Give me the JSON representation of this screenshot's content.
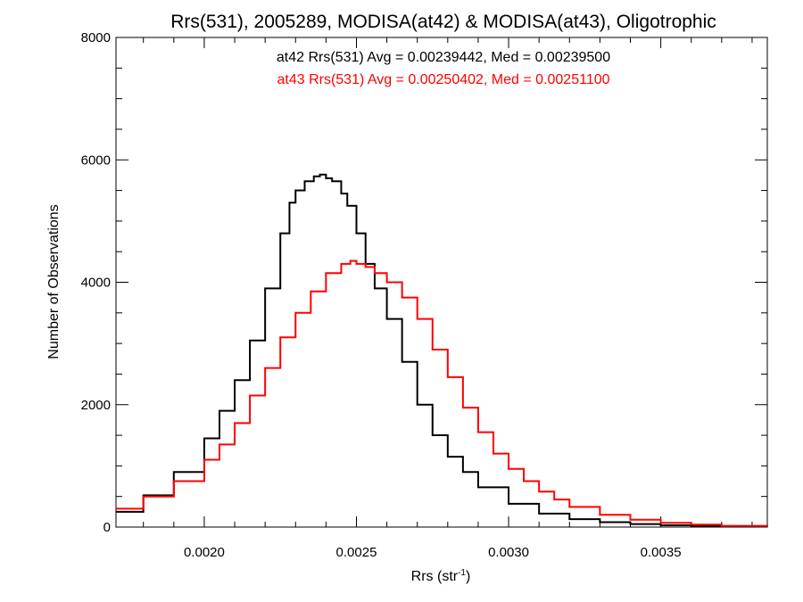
{
  "chart_data": {
    "type": "line",
    "title": "Rrs(531), 2005289, MODISA(at42) & MODISA(at43), Oligotrophic",
    "xlabel": "Rrs (str",
    "xlabel_sup": "-1",
    "xlabel_suffix": ")",
    "ylabel": "Number of Observations",
    "xlim": [
      0.00171,
      0.00385
    ],
    "ylim": [
      0,
      8000
    ],
    "x_ticks": [
      0.002,
      0.0025,
      0.003,
      0.0035
    ],
    "x_tick_labels": [
      "0.0020",
      "0.0025",
      "0.0030",
      "0.0035"
    ],
    "y_ticks": [
      0,
      2000,
      4000,
      6000,
      8000
    ],
    "y_tick_labels": [
      "0",
      "2000",
      "4000",
      "6000",
      "8000"
    ],
    "grid": false,
    "legend_placement": "top-center",
    "annotations": [
      {
        "text": "at42 Rrs(531) Avg = 0.00239442, Med = 0.00239500",
        "color": "#000000"
      },
      {
        "text": "at43 Rrs(531) Avg = 0.00250402, Med = 0.00251100",
        "color": "#ff0000"
      }
    ],
    "series": [
      {
        "color": "#000000",
        "style": "step",
        "x": [
          0.00171,
          0.0018,
          0.0019,
          0.002,
          0.00205,
          0.0021,
          0.00215,
          0.0022,
          0.00225,
          0.00228,
          0.0023,
          0.00233,
          0.00236,
          0.00238,
          0.0024,
          0.00242,
          0.00245,
          0.00247,
          0.0025,
          0.00253,
          0.00256,
          0.0026,
          0.00265,
          0.0027,
          0.00275,
          0.0028,
          0.00285,
          0.0029,
          0.003,
          0.0031,
          0.0032,
          0.0033,
          0.0034,
          0.0035,
          0.0036,
          0.00385
        ],
        "y": [
          250,
          520,
          900,
          1450,
          1900,
          2400,
          3050,
          3900,
          4800,
          5300,
          5500,
          5650,
          5730,
          5760,
          5700,
          5650,
          5450,
          5250,
          4800,
          4300,
          3900,
          3400,
          2700,
          2000,
          1500,
          1150,
          900,
          650,
          380,
          220,
          130,
          80,
          50,
          30,
          15,
          5
        ]
      },
      {
        "color": "#ff0000",
        "style": "step",
        "x": [
          0.00171,
          0.0018,
          0.0019,
          0.002,
          0.00205,
          0.0021,
          0.00215,
          0.0022,
          0.00225,
          0.0023,
          0.00235,
          0.0024,
          0.00245,
          0.00248,
          0.0025,
          0.00253,
          0.00256,
          0.0026,
          0.00265,
          0.0027,
          0.00275,
          0.0028,
          0.00285,
          0.0029,
          0.00295,
          0.003,
          0.00305,
          0.0031,
          0.00315,
          0.0032,
          0.0033,
          0.0034,
          0.0035,
          0.0036,
          0.0037,
          0.00385
        ],
        "y": [
          300,
          500,
          750,
          1100,
          1350,
          1700,
          2150,
          2600,
          3100,
          3500,
          3850,
          4150,
          4300,
          4350,
          4300,
          4250,
          4150,
          4000,
          3750,
          3400,
          2900,
          2450,
          1950,
          1550,
          1200,
          950,
          750,
          580,
          450,
          330,
          200,
          120,
          70,
          40,
          20,
          8
        ]
      }
    ]
  }
}
